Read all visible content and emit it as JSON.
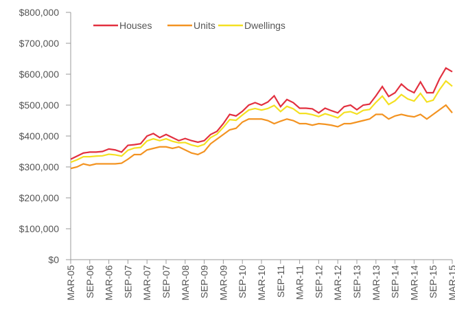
{
  "chart_data": {
    "type": "line",
    "categories": [
      "MAR-05",
      null,
      null,
      "SEP-06",
      null,
      null,
      "MAR-06",
      null,
      null,
      "SEP-07",
      null,
      null,
      "MAR-07",
      null,
      null,
      "SEP-07",
      null,
      null,
      "MAR-08",
      null,
      null,
      "SEP-09",
      null,
      null,
      "MAR-09",
      null,
      null,
      "SEP-10",
      null,
      null,
      "MAR-10",
      null,
      null,
      "SEP-11",
      null,
      null,
      "MAR-11",
      null,
      null,
      "SEP-12",
      null,
      null,
      "MAR-12",
      null,
      null,
      "SEP-13",
      null,
      null,
      "MAR-13",
      null,
      null,
      "SEP-14",
      null,
      null,
      "MAR-14",
      null,
      null,
      "SEP-15",
      null,
      null,
      "MAR-15"
    ],
    "series": [
      {
        "name": "Houses",
        "color": "#e2303f",
        "values": [
          325000,
          335000,
          345000,
          348000,
          348000,
          350000,
          358000,
          355000,
          348000,
          370000,
          372000,
          375000,
          400000,
          408000,
          395000,
          405000,
          395000,
          385000,
          392000,
          385000,
          380000,
          385000,
          405000,
          415000,
          440000,
          470000,
          465000,
          480000,
          500000,
          508000,
          500000,
          510000,
          530000,
          495000,
          518000,
          508000,
          490000,
          490000,
          488000,
          475000,
          490000,
          482000,
          475000,
          495000,
          500000,
          485000,
          500000,
          503000,
          530000,
          560000,
          528000,
          540000,
          568000,
          550000,
          540000,
          575000,
          540000,
          540000,
          585000,
          620000,
          608000
        ]
      },
      {
        "name": "Units",
        "color": "#f39321",
        "values": [
          295000,
          300000,
          310000,
          305000,
          310000,
          310000,
          310000,
          310000,
          312000,
          325000,
          340000,
          340000,
          355000,
          360000,
          365000,
          365000,
          360000,
          365000,
          355000,
          345000,
          340000,
          350000,
          375000,
          390000,
          405000,
          420000,
          425000,
          445000,
          455000,
          455000,
          455000,
          450000,
          440000,
          448000,
          455000,
          450000,
          440000,
          440000,
          435000,
          440000,
          438000,
          435000,
          430000,
          440000,
          440000,
          445000,
          450000,
          455000,
          470000,
          470000,
          455000,
          465000,
          470000,
          465000,
          462000,
          470000,
          455000,
          470000,
          485000,
          500000,
          475000
        ]
      },
      {
        "name": "Dwellings",
        "color": "#f4e021",
        "values": [
          315000,
          323000,
          333000,
          333000,
          335000,
          336000,
          341000,
          339000,
          335000,
          354000,
          361000,
          363000,
          384000,
          391000,
          385000,
          391000,
          383000,
          378000,
          379000,
          371000,
          366000,
          373000,
          395000,
          406000,
          428000,
          453000,
          451000,
          468000,
          484000,
          489000,
          484000,
          489000,
          499000,
          479000,
          496000,
          488000,
          473000,
          473000,
          469000,
          463000,
          472000,
          466000,
          459000,
          476000,
          479000,
          471000,
          483000,
          486000,
          509000,
          529000,
          502000,
          514000,
          534000,
          520000,
          513000,
          538000,
          510000,
          516000,
          550000,
          578000,
          561000
        ]
      }
    ],
    "ylim": [
      0,
      800000
    ],
    "yticks": [
      {
        "value": 0,
        "label": "$0"
      },
      {
        "value": 100000,
        "label": "$100,000"
      },
      {
        "value": 200000,
        "label": "$200,000"
      },
      {
        "value": 300000,
        "label": "$300,000"
      },
      {
        "value": 400000,
        "label": "$400,000"
      },
      {
        "value": 500000,
        "label": "$500,000"
      },
      {
        "value": 600000,
        "label": "$600,000"
      },
      {
        "value": 700000,
        "label": "$700,000"
      },
      {
        "value": 800000,
        "label": "$800,000"
      }
    ],
    "legend": "top"
  }
}
